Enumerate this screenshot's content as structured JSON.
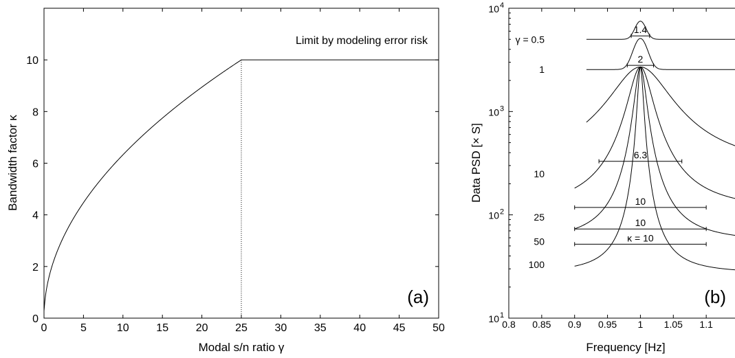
{
  "chart_data": [
    {
      "type": "line",
      "panel_label": "(a)",
      "xlabel": "Modal s/n ratio  γ",
      "ylabel": "Bandwidth factor κ",
      "xlim": [
        0,
        50
      ],
      "ylim": [
        0,
        12
      ],
      "xticks": [
        0,
        5,
        10,
        15,
        20,
        25,
        30,
        35,
        40,
        45,
        50
      ],
      "yticks": [
        0,
        2,
        4,
        6,
        8,
        10
      ],
      "series": [
        {
          "x": [
            0,
            0.1,
            0.25,
            0.5,
            1,
            2,
            3,
            4,
            5,
            6,
            7,
            8,
            9,
            10,
            12,
            14,
            16,
            18,
            20,
            22,
            24,
            25,
            30,
            35,
            40,
            45,
            50
          ],
          "values": [
            0.3,
            0.6,
            0.97,
            1.4,
            2.0,
            2.8,
            3.45,
            4.0,
            4.47,
            4.9,
            5.3,
            5.66,
            6.0,
            6.32,
            6.93,
            7.48,
            8.0,
            8.49,
            8.94,
            9.38,
            9.8,
            10,
            10,
            10,
            10,
            10,
            10
          ]
        }
      ],
      "vline_x": 25,
      "annotation": "Limit by modeling error risk",
      "grid": false
    },
    {
      "type": "line",
      "panel_label": "(b)",
      "xlabel": "Frequency [Hz]",
      "ylabel": "Data PSD [× S]",
      "xlim": [
        0.8,
        1.15
      ],
      "ylim": [
        10,
        10000
      ],
      "yscale": "log",
      "xticks": [
        "0.8",
        "0.85",
        "0.9",
        "0.95",
        "1",
        "1.05",
        "1.1"
      ],
      "yticks": [
        {
          "base": "10",
          "exp": "1"
        },
        {
          "base": "10",
          "exp": "2"
        },
        {
          "base": "10",
          "exp": "3"
        },
        {
          "base": "10",
          "exp": "4"
        }
      ],
      "series": [
        {
          "label": "γ = 0.5",
          "gamma": 0.5,
          "bandwidth_label": "1.4",
          "kappa": 1.4
        },
        {
          "label": "1",
          "gamma": 1,
          "bandwidth_label": "2",
          "kappa": 2
        },
        {
          "label": "10",
          "gamma": 10,
          "bandwidth_label": "6.3",
          "kappa": 6.3
        },
        {
          "label": "25",
          "gamma": 25,
          "bandwidth_label": "10",
          "kappa": 10
        },
        {
          "label": "50",
          "gamma": 50,
          "bandwidth_label": "10",
          "kappa": 10
        },
        {
          "label": "100",
          "gamma": 100,
          "bandwidth_label": "κ = 10",
          "kappa": 10
        }
      ],
      "grid": false
    }
  ]
}
